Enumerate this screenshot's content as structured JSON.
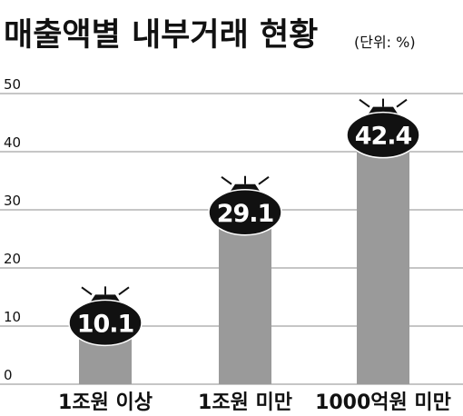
{
  "title": "매출액별 내부거래 현황",
  "unit": "(단위: %)",
  "colors": {
    "bar": "#9a9a9a",
    "badge": "#111111",
    "badge_text": "#ffffff",
    "grid": "#8c8c8c",
    "text": "#111111"
  },
  "chart_data": {
    "type": "bar",
    "categories": [
      "1조원 이상",
      "1조원 미만",
      "1000억원 미만"
    ],
    "values": [
      10.1,
      29.1,
      42.4
    ],
    "value_labels": [
      "10.1",
      "29.1",
      "42.4"
    ],
    "ylim": [
      0,
      50
    ],
    "yticks": [
      0,
      10,
      20,
      30,
      40,
      50
    ],
    "ytick_labels": [
      "0",
      "10",
      "20",
      "30",
      "40",
      "50"
    ],
    "grid": true,
    "legend": "none"
  }
}
